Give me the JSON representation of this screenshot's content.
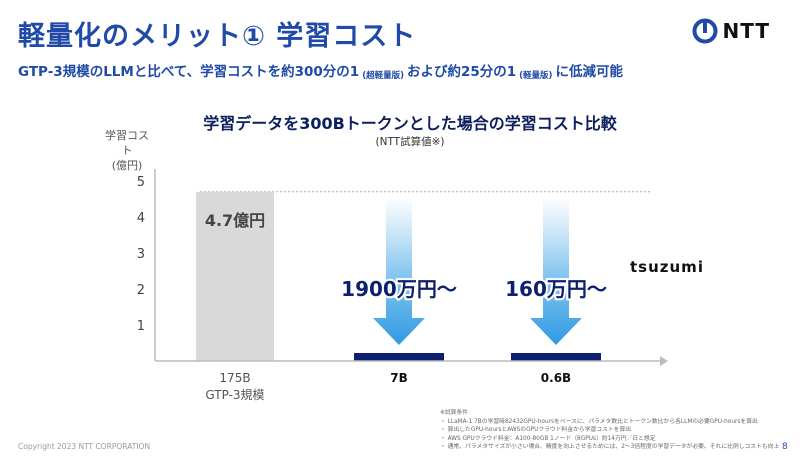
{
  "header": {
    "title": "軽量化のメリット① 学習コスト",
    "subtitle_part1": "GTP-3規模のLLMと比べて、学習コストを約300分の1",
    "subtitle_note1": "(超軽量版)",
    "subtitle_part2": "および約25分の1",
    "subtitle_note2": "(軽量版)",
    "subtitle_part3": "に低減可能"
  },
  "logo": {
    "text": "NTT",
    "color": "#1f4aa8"
  },
  "product_label": "tsuzumi",
  "chart_data": {
    "type": "bar",
    "title": "学習データを300Bトークンとした場合の学習コスト比較",
    "subtitle": "(NTT試算値※)",
    "ylabel_line1": "学習コスト",
    "ylabel_line2": "(億円)",
    "ylim": [
      0,
      5.5
    ],
    "yticks": [
      "1",
      "2",
      "3",
      "4",
      "5"
    ],
    "categories": [
      {
        "line1": "175B",
        "line2": "GTP-3規模"
      },
      {
        "line1": "7B",
        "line2": ""
      },
      {
        "line1": "0.6B",
        "line2": ""
      }
    ],
    "values": [
      4.7,
      0.19,
      0.016
    ],
    "bar_colors": [
      "#d9d9d9",
      "#0d1f6e",
      "#0d1f6e"
    ],
    "data_labels": [
      "4.7億円",
      "1900万円〜",
      "160万円〜"
    ],
    "reference_line": 4.7,
    "grid": false,
    "arrow_color": "#3aa3e6"
  },
  "notes": [
    "※試算条件",
    "・ LLaMA-1 7Bの学習時82432GPU-hoursをベースに、パラメタ数比とトークン数比から各LLMの必要GPU-hoursを算出",
    "・ 算出したGPU-hoursとAWSのGPUクラウド料金から学習コストを算出",
    "・ AWS GPUクラウド料金：A100-80GB 1ノード（8GPUs）約14万円／日と想定",
    "・ 通常、パラメタサイズが小さい場合、精度を向上させるためには、2～3倍程度の学習データが必要。それに比例しコストも向上"
  ],
  "footer": {
    "copyright": "Copyright 2023 NTT CORPORATION",
    "page": "8"
  }
}
